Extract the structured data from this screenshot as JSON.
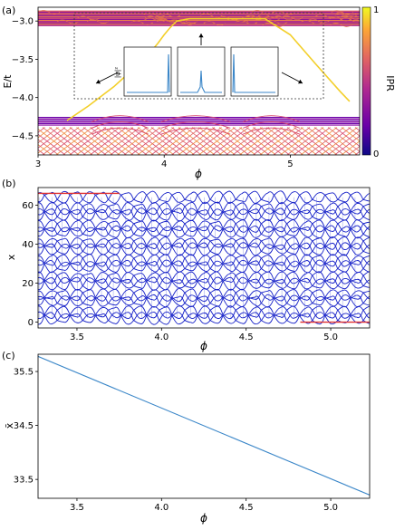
{
  "chart_data": [
    {
      "panel_label": "(a)",
      "type": "scatter",
      "xlabel": "ϕ",
      "ylabel": "E/t",
      "xlim": [
        3.0,
        5.55
      ],
      "ylim": [
        -4.75,
        -2.82
      ],
      "xticks": [
        "3",
        "4",
        "5"
      ],
      "xtick_values": [
        3,
        4,
        5
      ],
      "yticks": [
        "−3.0",
        "−3.5",
        "−4.0",
        "−4.5"
      ],
      "ytick_values": [
        -3.0,
        -3.5,
        -4.0,
        -4.5
      ],
      "colorbar": {
        "label": "IPR",
        "min_label": "0",
        "max_label": "1",
        "colors": [
          "#0d0887",
          "#6a00a8",
          "#b12a90",
          "#e16462",
          "#fca636",
          "#f0f921"
        ]
      },
      "edge_state": {
        "color": "#f3cf2a",
        "x": [
          3.23,
          3.4,
          3.6,
          3.8,
          3.9,
          3.95,
          4.0,
          4.05,
          4.1,
          4.2,
          4.4,
          4.6,
          4.8,
          5.0,
          5.2,
          5.4,
          5.47
        ],
        "y": [
          -4.3,
          -4.11,
          -3.86,
          -3.56,
          -3.39,
          -3.29,
          -3.18,
          -3.08,
          -3.0,
          -2.97,
          -2.97,
          -2.97,
          -2.97,
          -3.18,
          -3.56,
          -3.93,
          -4.05
        ]
      },
      "bulk_band_upper": {
        "ymin": -3.06,
        "ymax": -2.87
      },
      "bulk_band_lower": {
        "ymin": -4.75,
        "ymax": -4.26
      },
      "inset_label": "|ψ|²"
    },
    {
      "panel_label": "(b)",
      "type": "line",
      "xlabel": "ϕ",
      "ylabel": "x",
      "xlim": [
        3.27,
        5.23
      ],
      "ylim": [
        -3,
        69
      ],
      "xticks": [
        "3.5",
        "4.0",
        "4.5",
        "5.0"
      ],
      "xtick_values": [
        3.5,
        4.0,
        4.5,
        5.0
      ],
      "yticks": [
        "0",
        "20",
        "40",
        "60"
      ],
      "ytick_values": [
        0,
        20,
        40,
        60
      ],
      "edge_track": {
        "color": "#e03030",
        "segments": [
          {
            "x": [
              3.27,
              3.75
            ],
            "y": [
              66,
              66
            ]
          },
          {
            "x": [
              4.82,
              5.23
            ],
            "y": [
              0,
              0
            ]
          }
        ]
      },
      "trajectory_color": "#1520c8"
    },
    {
      "panel_label": "(c)",
      "type": "line",
      "xlabel": "ϕ",
      "ylabel": "x̄",
      "xlim": [
        3.27,
        5.23
      ],
      "ylim": [
        33.15,
        35.82
      ],
      "xticks": [
        "3.5",
        "4.0",
        "4.5",
        "5.0"
      ],
      "xtick_values": [
        3.5,
        4.0,
        4.5,
        5.0
      ],
      "yticks": [
        "35.5",
        "34.5",
        "33.5"
      ],
      "ytick_values": [
        35.5,
        34.5,
        33.5
      ],
      "series": [
        {
          "color": "#3a86c8",
          "x": [
            3.27,
            5.23
          ],
          "y": [
            35.78,
            33.21
          ]
        }
      ]
    }
  ]
}
